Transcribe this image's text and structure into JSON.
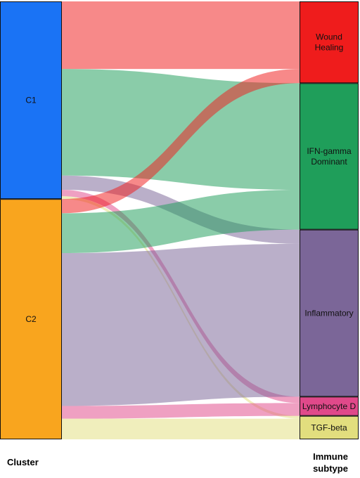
{
  "chart_data": {
    "type": "sankey",
    "title": "",
    "left_axis_label": "Cluster",
    "right_axis_label": "Immune subtype",
    "left_nodes": [
      {
        "id": "C1",
        "label": "C1",
        "color": "#1a73f5"
      },
      {
        "id": "C2",
        "label": "C2",
        "color": "#f9a51e"
      }
    ],
    "right_nodes": [
      {
        "id": "WH",
        "label": [
          "Wound",
          "Healing"
        ],
        "color": "#ef1c1c"
      },
      {
        "id": "IFN",
        "label": [
          "IFN-gamma",
          "Dominant"
        ],
        "color": "#1f9e5a"
      },
      {
        "id": "INF",
        "label": [
          "Inflammatory"
        ],
        "color": "#7b6698"
      },
      {
        "id": "LYM",
        "label": [
          "Lymphocyte D"
        ],
        "color": "#e0498a"
      },
      {
        "id": "TGF",
        "label": [
          "TGF-beta"
        ],
        "color": "#e2de7e"
      }
    ],
    "links": [
      {
        "source": "C1",
        "target": "WH",
        "value": 95
      },
      {
        "source": "C1",
        "target": "IFN",
        "value": 150
      },
      {
        "source": "C1",
        "target": "INF",
        "value": 20
      },
      {
        "source": "C1",
        "target": "LYM",
        "value": 9
      },
      {
        "source": "C1",
        "target": "TGF",
        "value": 4
      },
      {
        "source": "C2",
        "target": "WH",
        "value": 20
      },
      {
        "source": "C2",
        "target": "IFN",
        "value": 56
      },
      {
        "source": "C2",
        "target": "INF",
        "value": 215
      },
      {
        "source": "C2",
        "target": "LYM",
        "value": 18
      },
      {
        "source": "C2",
        "target": "TGF",
        "value": 29
      }
    ]
  }
}
